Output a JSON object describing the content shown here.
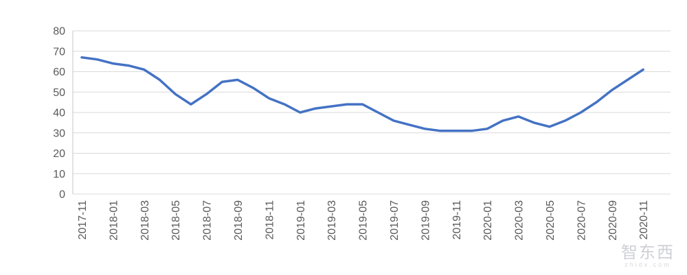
{
  "chart_data": {
    "type": "line",
    "title": "",
    "xlabel": "",
    "ylabel": "",
    "x": [
      "2017-11",
      "2017-12",
      "2018-01",
      "2018-02",
      "2018-03",
      "2018-04",
      "2018-05",
      "2018-06",
      "2018-07",
      "2018-08",
      "2018-09",
      "2018-10",
      "2018-11",
      "2018-12",
      "2019-01",
      "2019-02",
      "2019-03",
      "2019-04",
      "2019-05",
      "2019-06",
      "2019-07",
      "2019-08",
      "2019-09",
      "2019-10",
      "2019-11",
      "2019-12",
      "2020-01",
      "2020-02",
      "2020-03",
      "2020-04",
      "2020-05",
      "2020-06",
      "2020-07",
      "2020-08",
      "2020-09",
      "2020-10",
      "2020-11"
    ],
    "series": [
      {
        "name": "",
        "values": [
          67,
          66,
          64,
          63,
          61,
          56,
          49,
          44,
          49,
          55,
          56,
          52,
          47,
          44,
          40,
          42,
          43,
          44,
          44,
          40,
          36,
          34,
          32,
          31,
          31,
          31,
          32,
          36,
          38,
          35,
          33,
          36,
          40,
          45,
          51,
          56,
          61
        ]
      }
    ],
    "x_tick_labels": [
      "2017-11",
      "2018-01",
      "2018-03",
      "2018-05",
      "2018-07",
      "2018-09",
      "2018-11",
      "2019-01",
      "2019-03",
      "2019-05",
      "2019-07",
      "2019-09",
      "2019-11",
      "2020-01",
      "2020-03",
      "2020-05",
      "2020-07",
      "2020-09",
      "2020-11"
    ],
    "y_ticks": [
      0,
      10,
      20,
      30,
      40,
      50,
      60,
      70,
      80
    ],
    "ylim": [
      0,
      80
    ],
    "grid": true,
    "legend": "none",
    "line_color": "#4472C4",
    "grid_color": "#D9D9D9",
    "axis_line_color": "#C6C6C6",
    "tick_label_color": "#595959"
  },
  "watermark": {
    "cn": "智东西",
    "en": "zhidx.com"
  }
}
